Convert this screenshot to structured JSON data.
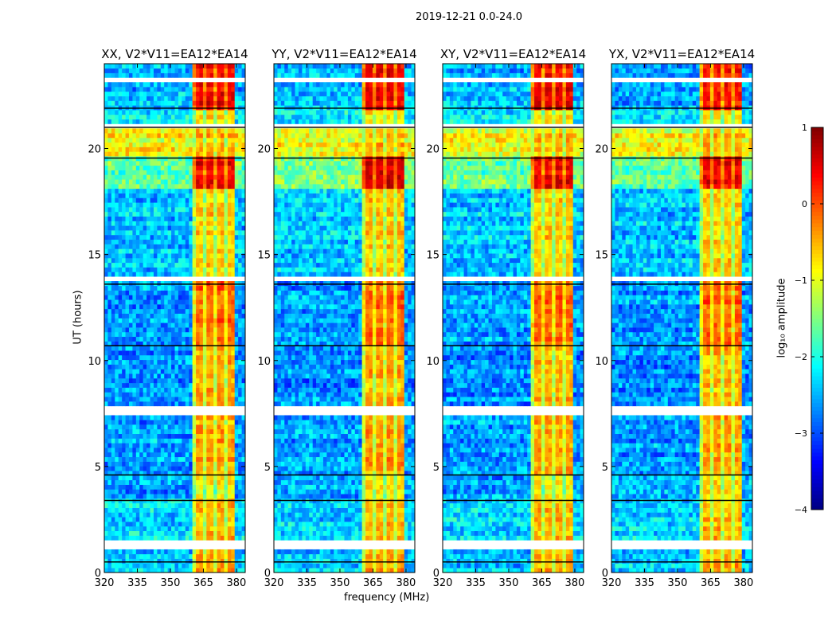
{
  "chart_data": [
    {
      "type": "heatmap",
      "suptitle": "2019-12-21 0.0-24.0",
      "panels": [
        {
          "title": "XX, V2*V11=EA12*EA14",
          "seed": 11
        },
        {
          "title": "YY, V2*V11=EA12*EA14",
          "seed": 23
        },
        {
          "title": "XY, V2*V11=EA12*EA14",
          "seed": 37
        },
        {
          "title": "YX, V2*V11=EA12*EA14",
          "seed": 51
        }
      ],
      "xlabel": "frequency (MHz)",
      "ylabel": "UT (hours)",
      "xlim": [
        320,
        384
      ],
      "ylim": [
        0,
        24
      ],
      "xticks": [
        "320",
        "335",
        "350",
        "365",
        "380"
      ],
      "xtick_values": [
        320,
        335,
        350,
        365,
        380
      ],
      "yticks": [
        "0",
        "5",
        "10",
        "15",
        "20"
      ],
      "ytick_values": [
        0,
        5,
        10,
        15,
        20
      ],
      "rfi_band_mhz": [
        360.4,
        380
      ],
      "rfi_subband_edges_mhz": [
        360.4,
        365.7,
        370.5,
        375.3,
        380
      ],
      "time_segments": [
        {
          "hours": [
            0,
            1.0
          ],
          "background": -2.4,
          "rfi": -0.4
        },
        {
          "hours": [
            1.5,
            3.4
          ],
          "background": -2.3,
          "rfi": -0.5
        },
        {
          "hours": [
            3.4,
            4.6
          ],
          "background": -2.6,
          "rfi": -0.8
        },
        {
          "hours": [
            4.6,
            7.5
          ],
          "background": -2.6,
          "rfi": -0.4
        },
        {
          "hours": [
            7.8,
            10.7
          ],
          "background": -2.7,
          "rfi": -0.5
        },
        {
          "hours": [
            10.7,
            13.8
          ],
          "background": -2.6,
          "rfi": -0.1
        },
        {
          "hours": [
            14.0,
            18.2
          ],
          "background": -2.4,
          "rfi": -0.6
        },
        {
          "hours": [
            18.2,
            19.6
          ],
          "background": -1.6,
          "rfi": 0.5
        },
        {
          "hours": [
            19.6,
            21.0
          ],
          "background": -0.9,
          "rfi": -0.5
        },
        {
          "hours": [
            21.1,
            21.9
          ],
          "background": -2.2,
          "rfi": -0.7
        },
        {
          "hours": [
            21.9,
            24.0
          ],
          "background": -2.5,
          "rfi": 0.4
        }
      ],
      "flagged_hours": [
        [
          1.0,
          1.5
        ],
        [
          7.5,
          7.8
        ],
        [
          13.8,
          14.0
        ],
        [
          21.5,
          21.6
        ],
        [
          23.2,
          23.3
        ]
      ],
      "black_lines_hours": [
        0.5,
        3.4,
        4.6,
        10.7,
        13.6,
        19.55,
        21.0,
        21.9
      ],
      "colorbar": {
        "label": "log₁₀ amplitude",
        "range": [
          -4,
          1
        ],
        "colormap": "jet",
        "ticks": [
          "1",
          "0",
          "−1",
          "−2",
          "−3",
          "−4"
        ],
        "tick_values": [
          1,
          0,
          -1,
          -2,
          -3,
          -4
        ]
      }
    }
  ]
}
